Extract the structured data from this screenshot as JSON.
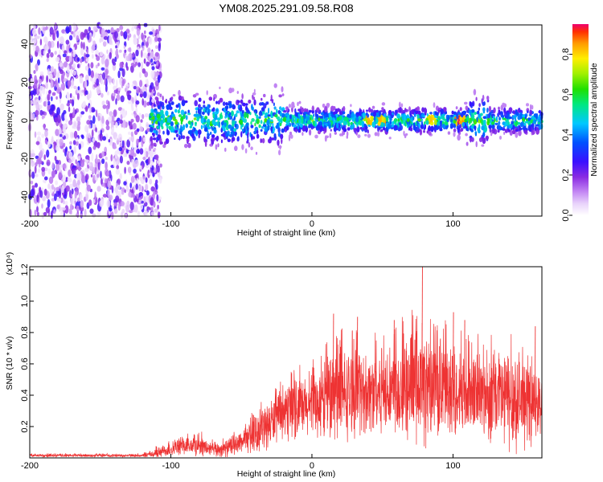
{
  "title": "YM08.2025.291.09.58.R08",
  "colors": {
    "snr_line": "#ee3333",
    "frame": "#000000",
    "background": "#ffffff"
  },
  "chart_data": [
    {
      "type": "heatmap",
      "name": "spectrogram",
      "xlabel": "Height of straight line (km)",
      "ylabel": "Frequency (Hz)",
      "xlim": [
        -200,
        163
      ],
      "ylim": [
        -50,
        50
      ],
      "x_ticks": [
        -200,
        -100,
        0,
        100
      ],
      "x_tick_labels": [
        "-200",
        "-100",
        "0",
        "100"
      ],
      "y_ticks": [
        -40,
        -20,
        0,
        20,
        40
      ],
      "y_tick_labels": [
        "-40",
        "-20",
        "0",
        "20",
        "40"
      ],
      "description_regions": [
        {
          "x_range": [
            -200,
            -115
          ],
          "pattern": "broadband scattered low amplitude noise",
          "amplitude_range": [
            0.0,
            0.3
          ]
        },
        {
          "x_range": [
            -115,
            163
          ],
          "pattern": "narrow band around 0 Hz",
          "center_hz": 0,
          "width_hz": 10,
          "amplitude_range": [
            0.2,
            1.0
          ]
        }
      ],
      "peaks": [
        {
          "x": 40,
          "amplitude": 0.85
        },
        {
          "x": 50,
          "amplitude": 0.9
        },
        {
          "x": 85,
          "amplitude": 0.85
        },
        {
          "x": 105,
          "amplitude": 0.95
        }
      ],
      "colorbar": {
        "label": "Normalized spectral amplitude",
        "range": [
          0.0,
          0.95
        ],
        "ticks": [
          0.0,
          0.2,
          0.4,
          0.6,
          0.8
        ],
        "tick_labels": [
          "0.0",
          "0.2",
          "0.4",
          "0.6",
          "0.8"
        ],
        "colormap": "white-purple-blue-cyan-green-yellow-orange-red"
      }
    },
    {
      "type": "line",
      "name": "snr",
      "xlabel": "Height of straight line (km)",
      "ylabel": "SNR (10 * v/v)",
      "y_multiplier_label": "(x10⁴)",
      "xlim": [
        -200,
        163
      ],
      "ylim": [
        0,
        1.22
      ],
      "x_ticks": [
        -200,
        -100,
        0,
        100
      ],
      "x_tick_labels": [
        "-200",
        "-100",
        "0",
        "100"
      ],
      "y_ticks": [
        0.2,
        0.4,
        0.6,
        0.8,
        1.0,
        1.2
      ],
      "y_tick_labels": [
        "0.2",
        "0.4",
        "0.6",
        "0.8",
        "1.0",
        "1.2"
      ],
      "series": [
        {
          "name": "SNR",
          "envelope_x": [
            -200,
            -120,
            -110,
            -95,
            -80,
            -70,
            -60,
            -50,
            -40,
            -30,
            -20,
            -10,
            0,
            10,
            20,
            40,
            60,
            80,
            100,
            120,
            140,
            163
          ],
          "envelope_mean": [
            0.015,
            0.015,
            0.03,
            0.07,
            0.08,
            0.05,
            0.06,
            0.1,
            0.15,
            0.22,
            0.28,
            0.3,
            0.33,
            0.37,
            0.4,
            0.42,
            0.44,
            0.45,
            0.43,
            0.4,
            0.38,
            0.32
          ],
          "envelope_peak": [
            0.03,
            0.03,
            0.08,
            0.15,
            0.18,
            0.12,
            0.15,
            0.2,
            0.32,
            0.45,
            0.5,
            0.6,
            0.62,
            0.75,
            0.85,
            0.8,
            0.9,
            1.0,
            0.85,
            0.8,
            0.9,
            0.6
          ]
        }
      ],
      "spikes": [
        {
          "x": 15,
          "y": 0.92
        },
        {
          "x": 32,
          "y": 0.9
        },
        {
          "x": 58,
          "y": 0.88
        },
        {
          "x": 78,
          "y": 1.22
        },
        {
          "x": 100,
          "y": 0.93
        },
        {
          "x": 108,
          "y": 0.88
        },
        {
          "x": 158,
          "y": 0.84
        }
      ]
    }
  ]
}
